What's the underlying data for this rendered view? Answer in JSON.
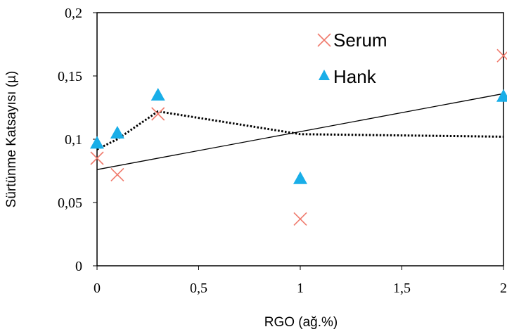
{
  "chart_data": {
    "type": "scatter",
    "xlabel": "RGO (ağ.%)",
    "ylabel": "Sürtünme Katsayısı (µ)",
    "xlim": [
      0,
      2
    ],
    "ylim": [
      0,
      0.2
    ],
    "x_ticks": [
      0,
      0.5,
      1,
      1.5,
      2
    ],
    "x_tick_labels": [
      "0",
      "0,5",
      "1",
      "1,5",
      "2"
    ],
    "y_ticks": [
      0,
      0.05,
      0.1,
      0.15,
      0.2
    ],
    "y_tick_labels": [
      "0",
      "0,05",
      "0,1",
      "0,15",
      "0,2"
    ],
    "grid": false,
    "legend_position": "top-right",
    "series": [
      {
        "name": "Serum",
        "marker": "x",
        "color": "#f07a6c",
        "x": [
          0,
          0.1,
          0.3,
          1,
          2
        ],
        "y": [
          0.085,
          0.072,
          0.12,
          0.037,
          0.166
        ]
      },
      {
        "name": "Hank",
        "marker": "triangle",
        "color": "#19aee8",
        "x": [
          0,
          0.1,
          0.3,
          1,
          2
        ],
        "y": [
          0.097,
          0.105,
          0.135,
          0.069,
          0.134
        ]
      }
    ],
    "trendlines": [
      {
        "style": "dotted",
        "color": "#000000",
        "points": [
          [
            0,
            0.092
          ],
          [
            0.1,
            0.1
          ],
          [
            0.3,
            0.122
          ],
          [
            1,
            0.104
          ],
          [
            2,
            0.102
          ]
        ]
      },
      {
        "style": "solid",
        "color": "#000000",
        "points": [
          [
            0,
            0.076
          ],
          [
            2,
            0.136
          ]
        ]
      }
    ]
  }
}
